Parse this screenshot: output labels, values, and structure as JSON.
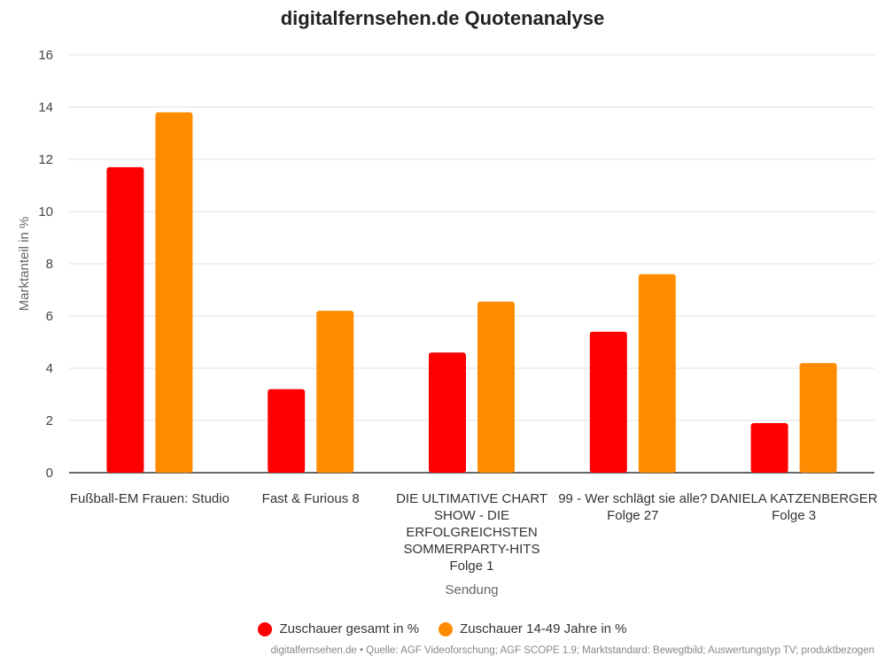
{
  "title": "digitalfernsehen.de Quotenanalyse",
  "footer": "digitalfernsehen.de • Quelle: AGF Videoforschung; AGF SCOPE 1.9; Marktstandard: Bewegtbild; Auswertungstyp TV; produktbezogen",
  "colors": {
    "series1": "#ff0000",
    "series2": "#ff8c00",
    "grid": "#e0e0e0",
    "axis": "#333333"
  },
  "chart_data": {
    "type": "bar",
    "title": "digitalfernsehen.de Quotenanalyse",
    "xlabel": "Sendung",
    "ylabel": "Marktanteil in %",
    "ylim": [
      0,
      16
    ],
    "yticks": [
      0,
      2,
      4,
      6,
      8,
      10,
      12,
      14,
      16
    ],
    "grid": true,
    "legend_position": "bottom",
    "categories": [
      [
        "Fußball-EM Frauen: Studio"
      ],
      [
        "Fast & Furious 8"
      ],
      [
        "DIE ULTIMATIVE CHART",
        "SHOW - DIE",
        "ERFOLGREICHSTEN",
        "SOMMERPARTY-HITS",
        "Folge 1"
      ],
      [
        "99 - Wer schlägt sie alle?",
        "Folge 27"
      ],
      [
        "DANIELA KATZENBERGER",
        "Folge 3"
      ]
    ],
    "series": [
      {
        "name": "Zuschauer gesamt in %",
        "values": [
          11.7,
          3.2,
          4.6,
          5.4,
          1.9
        ]
      },
      {
        "name": "Zuschauer 14-49 Jahre in %",
        "values": [
          13.8,
          6.2,
          6.55,
          7.6,
          4.2
        ]
      }
    ]
  }
}
